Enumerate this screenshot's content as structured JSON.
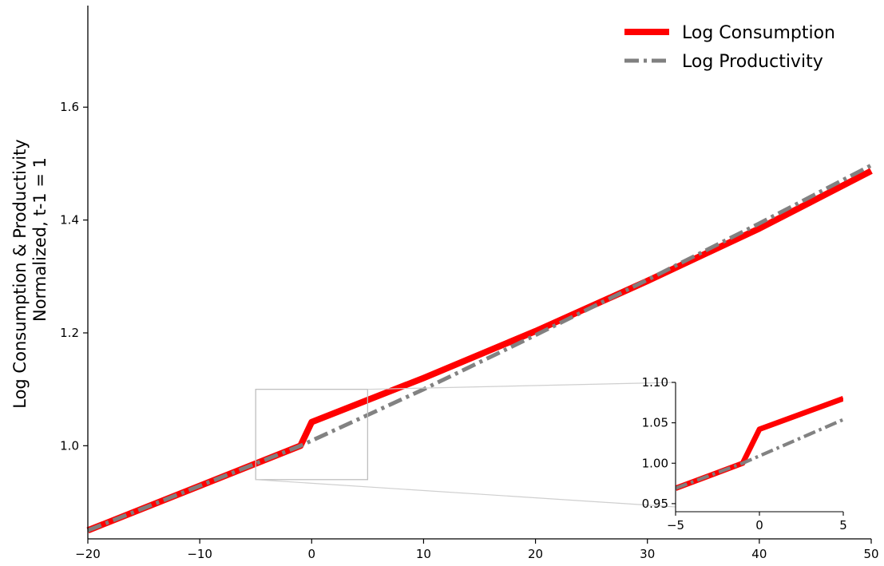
{
  "chart_data": [
    {
      "type": "line",
      "ylabel_lines": [
        "Log Consumption & Productivity",
        "Normalized, t-1 = 1"
      ],
      "xlim": [
        -20,
        50
      ],
      "ylim": [
        0.835,
        1.78
      ],
      "xticks": [
        -20,
        -10,
        0,
        10,
        20,
        30,
        40,
        50
      ],
      "xtick_labels": [
        "−20",
        "−10",
        "0",
        "10",
        "20",
        "30",
        "40",
        "50"
      ],
      "yticks": [
        1.0,
        1.2,
        1.4,
        1.6
      ],
      "ytick_labels": [
        "1.0",
        "1.2",
        "1.4",
        "1.6"
      ],
      "legend_placement": "top-right",
      "series": [
        {
          "name": "Log Consumption",
          "color": "#ff0000",
          "style": "solid",
          "x": [
            -20,
            -1,
            0,
            10,
            20,
            30,
            40,
            50
          ],
          "y": [
            0.85,
            1.0,
            1.042,
            1.12,
            1.203,
            1.292,
            1.385,
            1.487
          ]
        },
        {
          "name": "Log Productivity",
          "color": "#808080",
          "style": "dashdot",
          "x": [
            -20,
            -1,
            0,
            10,
            20,
            30,
            40,
            50
          ],
          "y": [
            0.85,
            1.0,
            1.009,
            1.1,
            1.196,
            1.294,
            1.394,
            1.497
          ]
        }
      ]
    },
    {
      "type": "line",
      "role": "inset-zoom",
      "xlim": [
        -5,
        5
      ],
      "ylim": [
        0.94,
        1.1
      ],
      "xticks": [
        -5,
        0,
        5
      ],
      "xtick_labels": [
        "−5",
        "0",
        "5"
      ],
      "yticks": [
        0.95,
        1.0,
        1.05,
        1.1
      ],
      "ytick_labels": [
        "0.95",
        "1.00",
        "1.05",
        "1.10"
      ],
      "series": [
        {
          "name": "Log Consumption",
          "color": "#ff0000",
          "style": "solid",
          "x": [
            -5,
            -1,
            0,
            5
          ],
          "y": [
            0.969,
            1.0,
            1.042,
            1.08
          ]
        },
        {
          "name": "Log Productivity",
          "color": "#808080",
          "style": "dashdot",
          "x": [
            -5,
            -1,
            0,
            5
          ],
          "y": [
            0.969,
            1.0,
            1.009,
            1.054
          ]
        }
      ]
    }
  ]
}
